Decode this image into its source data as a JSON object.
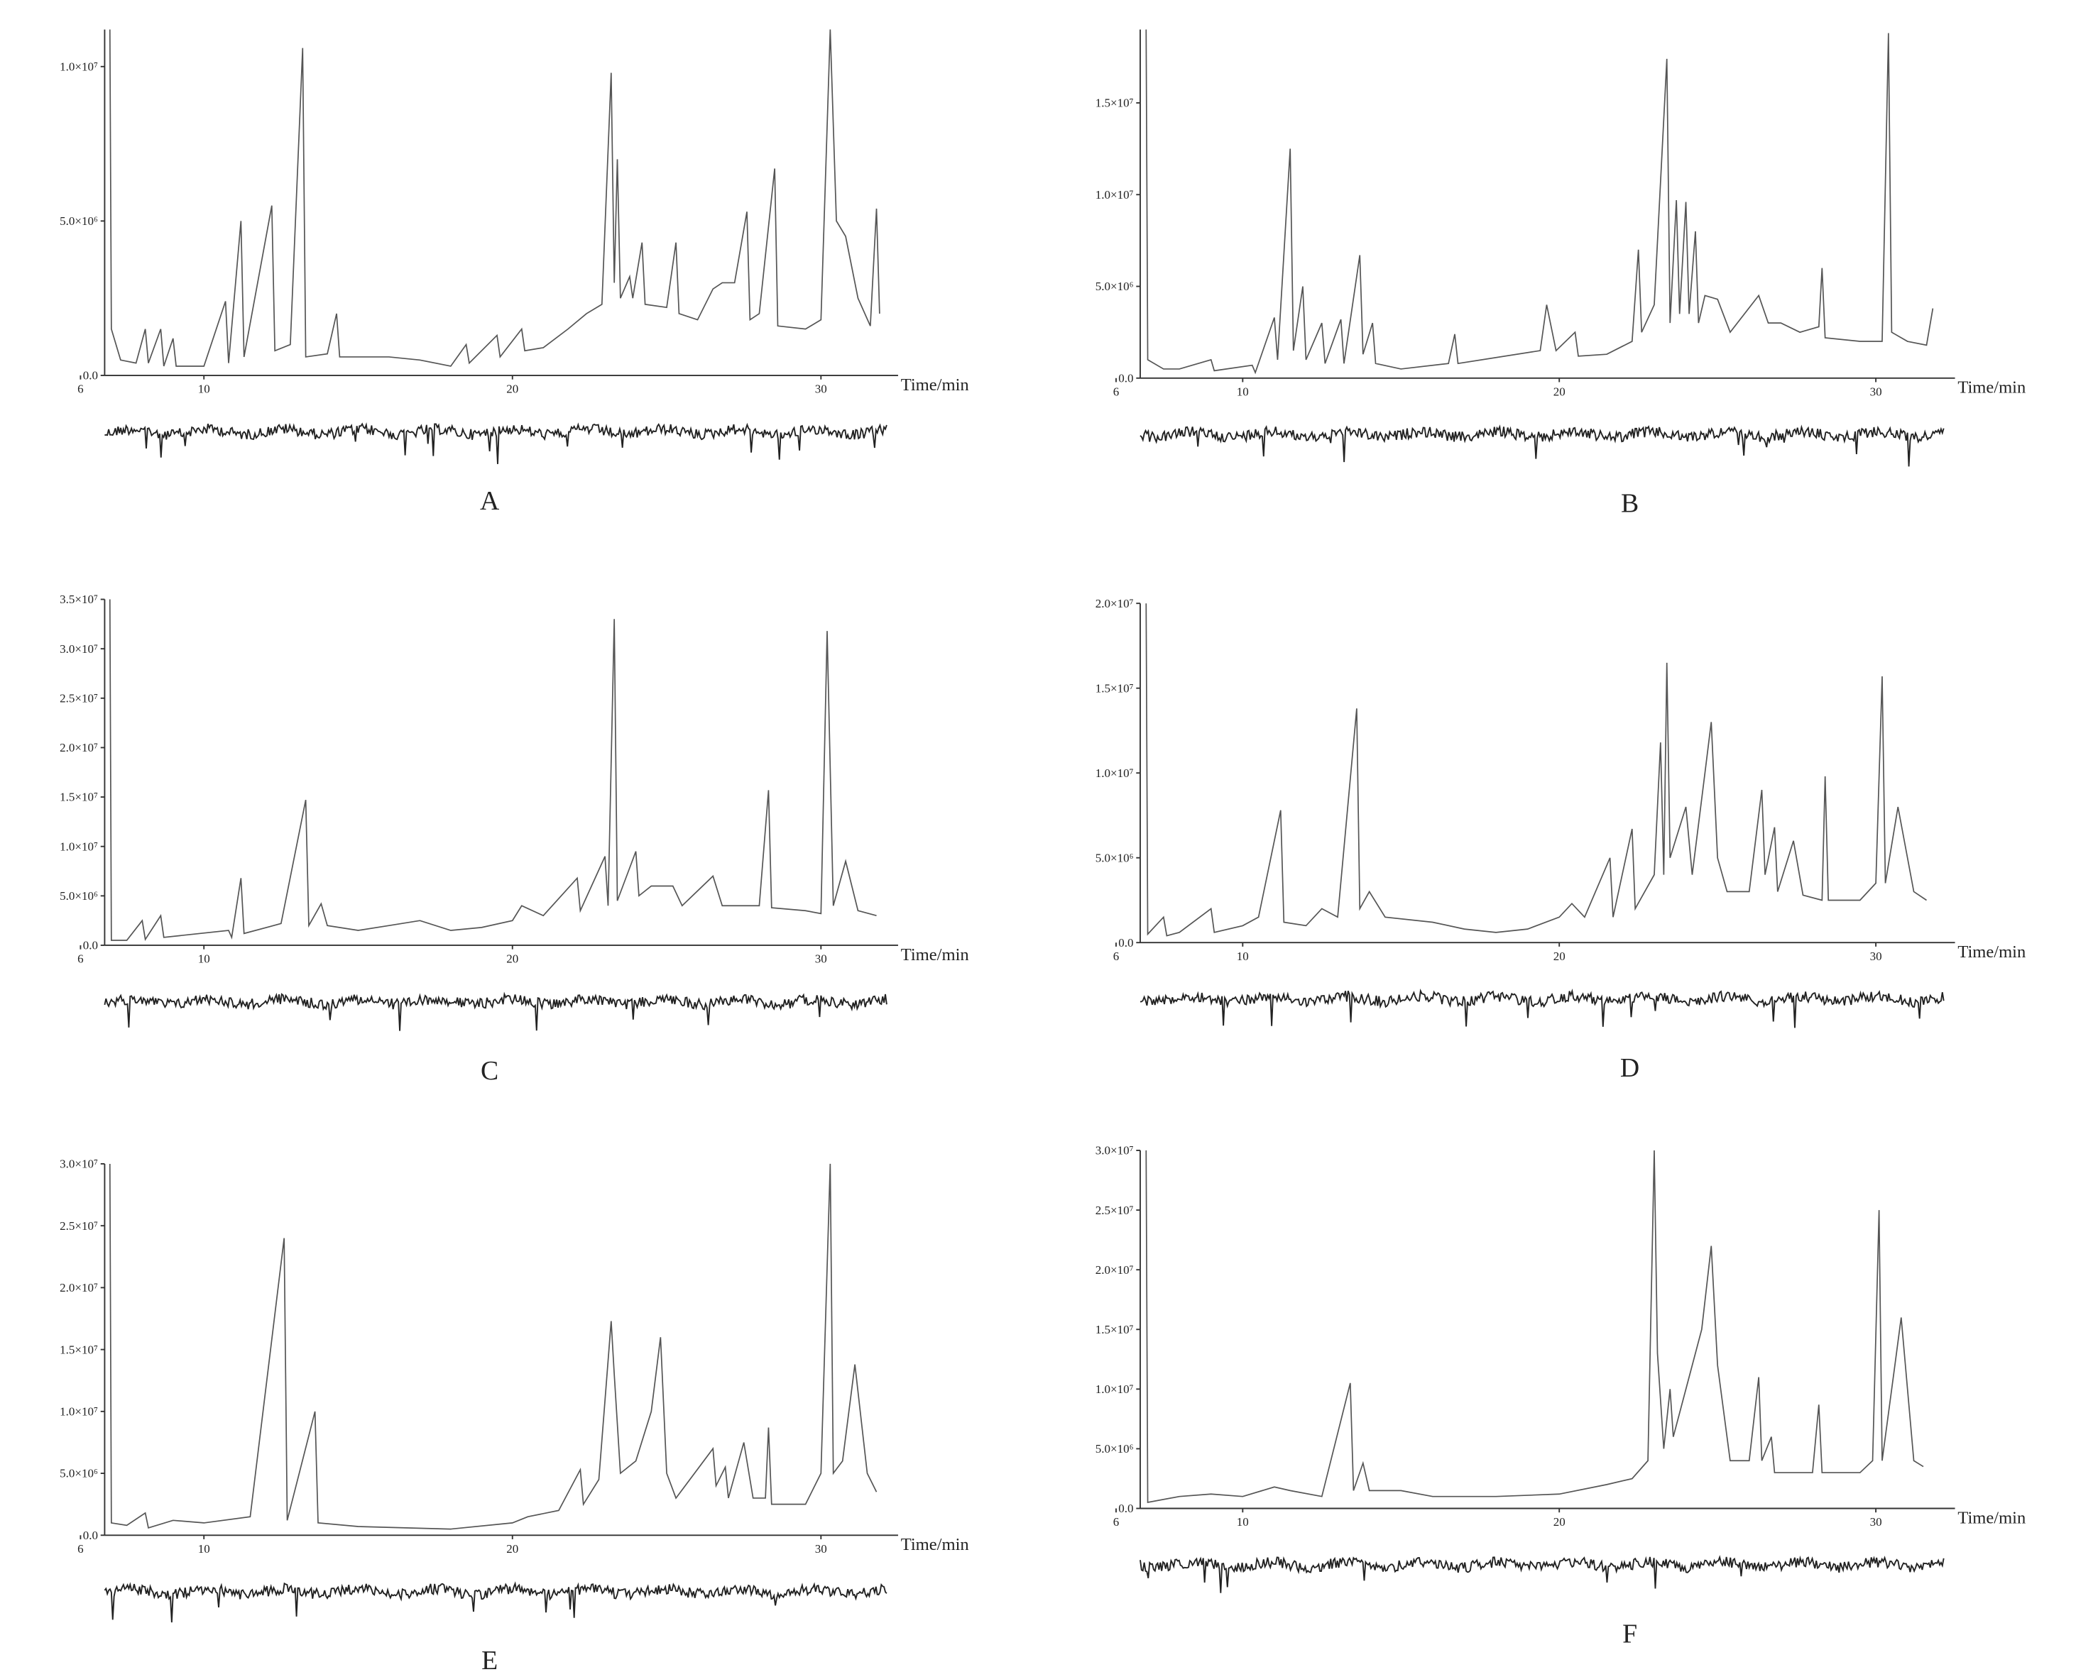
{
  "chart_data": [
    {
      "type": "line",
      "label": "A",
      "x_label": "Time/min",
      "color": "#555",
      "xlim": [
        6,
        32.5
      ],
      "ylim": [
        0,
        11200000.0
      ],
      "xticks": [
        6,
        10,
        20,
        30
      ],
      "yticks": [
        {
          "value": 0,
          "label": "0.0"
        },
        {
          "value": 5000000.0,
          "label": "5.0×10⁶"
        },
        {
          "value": 10000000.0,
          "label": "1.0×10⁷"
        }
      ],
      "x": [
        6.95,
        7.0,
        7.3,
        7.8,
        8.1,
        8.2,
        8.6,
        8.7,
        9.0,
        9.1,
        10.0,
        10.7,
        10.8,
        11.2,
        11.3,
        12.2,
        12.3,
        12.8,
        13.2,
        13.3,
        14.0,
        14.3,
        14.4,
        16,
        17,
        18,
        18.5,
        18.6,
        19.5,
        19.6,
        20.3,
        20.4,
        21,
        21.8,
        22.4,
        22.9,
        23.2,
        23.3,
        23.4,
        23.5,
        23.8,
        23.9,
        24.2,
        24.3,
        25,
        25.3,
        25.4,
        26,
        26.5,
        26.8,
        27.2,
        27.6,
        27.7,
        28.0,
        28.5,
        28.6,
        29.5,
        30.0,
        30.3,
        30.5,
        30.8,
        31.2,
        31.6,
        31.8,
        31.9
      ],
      "values": [
        11200000.0,
        1500000.0,
        500000.0,
        400000.0,
        1500000.0,
        400000.0,
        1500000.0,
        300000.0,
        1200000.0,
        300000.0,
        300000.0,
        2400000.0,
        400000.0,
        5000000.0,
        600000.0,
        5500000.0,
        800000.0,
        1000000.0,
        10600000.0,
        600000.0,
        700000.0,
        2000000.0,
        600000.0,
        600000.0,
        500000.0,
        300000.0,
        1000000.0,
        400000.0,
        1300000.0,
        600000.0,
        1500000.0,
        800000.0,
        900000.0,
        1500000.0,
        2000000.0,
        2300000.0,
        9800000.0,
        3000000.0,
        7000000.0,
        2500000.0,
        3200000.0,
        2500000.0,
        4300000.0,
        2300000.0,
        2200000.0,
        4300000.0,
        2000000.0,
        1800000.0,
        2800000.0,
        3000000.0,
        3000000.0,
        5300000.0,
        1800000.0,
        2000000.0,
        6700000.0,
        1600000.0,
        1500000.0,
        1800000.0,
        11200000.0,
        5000000.0,
        4500000.0,
        2500000.0,
        1600000.0,
        5400000.0,
        2000000.0
      ]
    },
    {
      "type": "line",
      "label": "B",
      "x_label": "Time/min",
      "color": "#555",
      "xlim": [
        6,
        32.5
      ],
      "ylim": [
        0,
        19000000.0
      ],
      "xticks": [
        6,
        10,
        20,
        30
      ],
      "yticks": [
        {
          "value": 0,
          "label": "0.0"
        },
        {
          "value": 5000000.0,
          "label": "5.0×10⁶"
        },
        {
          "value": 10000000.0,
          "label": "1.0×10⁷"
        },
        {
          "value": 15000000.0,
          "label": "1.5×10⁷"
        }
      ],
      "x": [
        6.95,
        7.0,
        7.5,
        8.0,
        9.0,
        9.1,
        10.3,
        10.4,
        11.0,
        11.1,
        11.5,
        11.6,
        11.9,
        12.0,
        12.5,
        12.6,
        13.1,
        13.2,
        13.7,
        13.8,
        14.1,
        14.2,
        15,
        16.5,
        16.7,
        16.8,
        19.4,
        19.6,
        19.9,
        20.5,
        20.6,
        21.5,
        22.3,
        22.5,
        22.6,
        23.0,
        23.4,
        23.5,
        23.7,
        23.8,
        24.0,
        24.1,
        24.3,
        24.4,
        24.6,
        25.0,
        25.4,
        26.3,
        26.6,
        27,
        27.6,
        28.2,
        28.3,
        28.4,
        29.5,
        30.2,
        30.4,
        30.5,
        31.0,
        31.6,
        31.8
      ],
      "values": [
        19000000.0,
        1000000.0,
        500000.0,
        500000.0,
        1000000.0,
        400000.0,
        700000.0,
        300000.0,
        3300000.0,
        1000000.0,
        12500000.0,
        1500000.0,
        5000000.0,
        1000000.0,
        3000000.0,
        800000.0,
        3200000.0,
        800000.0,
        6700000.0,
        1300000.0,
        3000000.0,
        800000.0,
        500000.0,
        800000.0,
        2400000.0,
        800000.0,
        1500000.0,
        4000000.0,
        1500000.0,
        2500000.0,
        1200000.0,
        1300000.0,
        2000000.0,
        7000000.0,
        2500000.0,
        4000000.0,
        17400000.0,
        3000000.0,
        9700000.0,
        3500000.0,
        9600000.0,
        3500000.0,
        8000000.0,
        3000000.0,
        4500000.0,
        4300000.0,
        2500000.0,
        4500000.0,
        3000000.0,
        3000000.0,
        2500000.0,
        2800000.0,
        6000000.0,
        2200000.0,
        2000000.0,
        2000000.0,
        18800000.0,
        2500000.0,
        2000000.0,
        1800000.0,
        3800000.0
      ]
    },
    {
      "type": "line",
      "label": "C",
      "x_label": "Time/min",
      "color": "#555",
      "xlim": [
        6,
        32.5
      ],
      "ylim": [
        0,
        35000000.0
      ],
      "xticks": [
        6,
        10,
        20,
        30
      ],
      "yticks": [
        {
          "value": 0,
          "label": "0.0"
        },
        {
          "value": 5000000.0,
          "label": "5.0×10⁶"
        },
        {
          "value": 10000000.0,
          "label": "1.0×10⁷"
        },
        {
          "value": 15000000.0,
          "label": "1.5×10⁷"
        },
        {
          "value": 20000000.0,
          "label": "2.0×10⁷"
        },
        {
          "value": 25000000.0,
          "label": "2.5×10⁷"
        },
        {
          "value": 30000000.0,
          "label": "3.0×10⁷"
        },
        {
          "value": 35000000.0,
          "label": "3.5×10⁷"
        }
      ],
      "x": [
        6.95,
        7.0,
        7.5,
        8.0,
        8.1,
        8.6,
        8.7,
        10.8,
        10.9,
        11.2,
        11.3,
        12.5,
        13.3,
        13.4,
        13.8,
        14.0,
        15,
        16,
        17,
        18,
        19,
        20,
        20.3,
        21,
        22.1,
        22.2,
        23.0,
        23.1,
        23.3,
        23.4,
        24.0,
        24.1,
        24.5,
        25.2,
        25.5,
        26.5,
        26.8,
        28.0,
        28.3,
        28.4,
        29.5,
        30.0,
        30.2,
        30.4,
        30.8,
        31.2,
        31.8
      ],
      "values": [
        35000000.0,
        500000.0,
        500000.0,
        2500000.0,
        600000.0,
        3000000.0,
        800000.0,
        1500000.0,
        800000.0,
        6800000.0,
        1200000.0,
        2200000.0,
        14700000.0,
        2000000.0,
        4200000.0,
        2000000.0,
        1500000.0,
        2000000.0,
        2500000.0,
        1500000.0,
        1800000.0,
        2500000.0,
        4000000.0,
        3000000.0,
        6800000.0,
        3500000.0,
        9000000.0,
        4000000.0,
        33000000.0,
        4500000.0,
        9500000.0,
        5000000.0,
        6000000.0,
        6000000.0,
        4000000.0,
        7000000.0,
        4000000.0,
        4000000.0,
        15700000.0,
        3800000.0,
        3500000.0,
        3200000.0,
        31800000.0,
        4000000.0,
        8500000.0,
        3500000.0,
        3000000.0
      ]
    },
    {
      "type": "line",
      "label": "D",
      "x_label": "Time/min",
      "color": "#555",
      "xlim": [
        6,
        32.5
      ],
      "ylim": [
        0,
        20000000.0
      ],
      "xticks": [
        6,
        10,
        20,
        30
      ],
      "yticks": [
        {
          "value": 0,
          "label": "0.0"
        },
        {
          "value": 5000000.0,
          "label": "5.0×10⁶"
        },
        {
          "value": 10000000.0,
          "label": "1.0×10⁷"
        },
        {
          "value": 15000000.0,
          "label": "1.5×10⁷"
        },
        {
          "value": 20000000.0,
          "label": "2.0×10⁷"
        }
      ],
      "x": [
        6.95,
        7.0,
        7.5,
        7.6,
        8.0,
        9.0,
        9.1,
        10,
        10.5,
        11.2,
        11.3,
        12,
        12.5,
        13.0,
        13.6,
        13.7,
        14.0,
        14.5,
        16,
        17,
        18,
        19,
        20,
        20.4,
        20.8,
        21.6,
        21.7,
        22.3,
        22.4,
        23.0,
        23.2,
        23.3,
        23.4,
        23.5,
        24.0,
        24.2,
        24.6,
        24.8,
        25.0,
        25.3,
        26.0,
        26.4,
        26.5,
        26.8,
        26.9,
        27.4,
        27.7,
        28.3,
        28.4,
        28.5,
        29.5,
        30.0,
        30.2,
        30.3,
        30.7,
        31.2,
        31.6
      ],
      "values": [
        20000000.0,
        500000.0,
        1500000.0,
        400000.0,
        600000.0,
        2000000.0,
        600000.0,
        1000000.0,
        1500000.0,
        7800000.0,
        1200000.0,
        1000000.0,
        2000000.0,
        1500000.0,
        13800000.0,
        2000000.0,
        3000000.0,
        1500000.0,
        1200000.0,
        800000.0,
        600000.0,
        800000.0,
        1500000.0,
        2300000.0,
        1500000.0,
        5000000.0,
        1500000.0,
        6700000.0,
        2000000.0,
        4000000.0,
        11800000.0,
        4000000.0,
        16500000.0,
        5000000.0,
        8000000.0,
        4000000.0,
        10000000.0,
        13000000.0,
        5000000.0,
        3000000.0,
        3000000.0,
        9000000.0,
        4000000.0,
        6800000.0,
        3000000.0,
        6000000.0,
        2800000.0,
        2500000.0,
        9800000.0,
        2500000.0,
        2500000.0,
        3500000.0,
        15700000.0,
        3500000.0,
        8000000.0,
        3000000.0,
        2500000.0
      ]
    },
    {
      "type": "line",
      "label": "E",
      "x_label": "Time/min",
      "color": "#555",
      "xlim": [
        6,
        32.5
      ],
      "ylim": [
        0,
        30000000.0
      ],
      "xticks": [
        6,
        10,
        20,
        30
      ],
      "yticks": [
        {
          "value": 0,
          "label": "0.0"
        },
        {
          "value": 5000000.0,
          "label": "5.0×10⁶"
        },
        {
          "value": 10000000.0,
          "label": "1.0×10⁷"
        },
        {
          "value": 15000000.0,
          "label": "1.5×10⁷"
        },
        {
          "value": 20000000.0,
          "label": "2.0×10⁷"
        },
        {
          "value": 25000000.0,
          "label": "2.5×10⁷"
        },
        {
          "value": 30000000.0,
          "label": "3.0×10⁷"
        }
      ],
      "x": [
        6.95,
        7.0,
        7.5,
        8.1,
        8.2,
        9,
        10,
        11.5,
        12.6,
        12.7,
        13.6,
        13.7,
        15,
        18,
        20,
        20.5,
        21.5,
        22.2,
        22.3,
        22.8,
        23.2,
        23.3,
        23.5,
        24,
        24.5,
        24.8,
        25.0,
        25.3,
        26.5,
        26.6,
        26.9,
        27.0,
        27.5,
        27.8,
        28.2,
        28.3,
        28.4,
        29.5,
        30.0,
        30.3,
        30.4,
        30.7,
        31.1,
        31.5,
        31.8
      ],
      "values": [
        30000000.0,
        1000000.0,
        800000.0,
        1800000.0,
        600000.0,
        1200000.0,
        1000000.0,
        1500000.0,
        24000000.0,
        1200000.0,
        10000000.0,
        1000000.0,
        700000.0,
        500000.0,
        1000000.0,
        1500000.0,
        2000000.0,
        5300000.0,
        2500000.0,
        4500000.0,
        17300000.0,
        13000000.0,
        5000000.0,
        6000000.0,
        10000000.0,
        16000000.0,
        5000000.0,
        3000000.0,
        7000000.0,
        4000000.0,
        5500000.0,
        3000000.0,
        7500000.0,
        3000000.0,
        3000000.0,
        8700000.0,
        2500000.0,
        2500000.0,
        5000000.0,
        30000000.0,
        5000000.0,
        6000000.0,
        13800000.0,
        5000000.0,
        3500000.0
      ]
    },
    {
      "type": "line",
      "label": "F",
      "x_label": "Time/min",
      "color": "#555",
      "xlim": [
        6,
        32.5
      ],
      "ylim": [
        0,
        30000000.0
      ],
      "xticks": [
        6,
        10,
        20,
        30
      ],
      "yticks": [
        {
          "value": 0,
          "label": "0.0"
        },
        {
          "value": 5000000.0,
          "label": "5.0×10⁶"
        },
        {
          "value": 10000000.0,
          "label": "1.0×10⁷"
        },
        {
          "value": 15000000.0,
          "label": "1.5×10⁷"
        },
        {
          "value": 20000000.0,
          "label": "2.0×10⁷"
        },
        {
          "value": 25000000.0,
          "label": "2.5×10⁷"
        },
        {
          "value": 30000000.0,
          "label": "3.0×10⁷"
        }
      ],
      "x": [
        6.95,
        7.0,
        8,
        9,
        10,
        11,
        11.5,
        12.5,
        13.4,
        13.5,
        13.8,
        14.0,
        15,
        16,
        18,
        20,
        21.5,
        22.3,
        22.8,
        23.0,
        23.1,
        23.3,
        23.5,
        23.6,
        24.5,
        24.8,
        25.0,
        25.2,
        25.4,
        26.0,
        26.3,
        26.4,
        26.7,
        26.8,
        28.0,
        28.2,
        28.3,
        29.5,
        29.9,
        30.1,
        30.2,
        30.6,
        30.8,
        31.2,
        31.5
      ],
      "values": [
        30000000.0,
        500000.0,
        1000000.0,
        1200000.0,
        1000000.0,
        1800000.0,
        1500000.0,
        1000000.0,
        10500000.0,
        1500000.0,
        3800000.0,
        1500000.0,
        1500000.0,
        1000000.0,
        1000000.0,
        1200000.0,
        2000000.0,
        2500000.0,
        4000000.0,
        30000000.0,
        13000000.0,
        5000000.0,
        10000000.0,
        6000000.0,
        15000000.0,
        22000000.0,
        12000000.0,
        8000000.0,
        4000000.0,
        4000000.0,
        11000000.0,
        4000000.0,
        6000000.0,
        3000000.0,
        3000000.0,
        8700000.0,
        3000000.0,
        3000000.0,
        4000000.0,
        25000000.0,
        4000000.0,
        12000000.0,
        16000000.0,
        4000000.0,
        3500000.0
      ]
    }
  ]
}
